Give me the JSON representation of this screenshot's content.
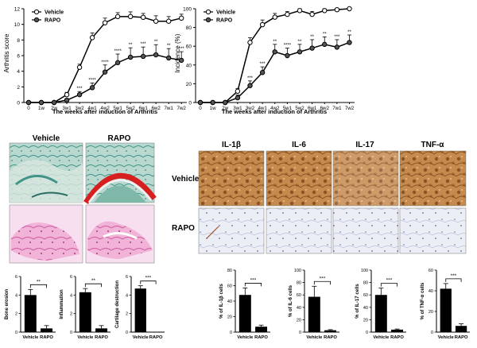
{
  "colors": {
    "axis": "#000000",
    "vehicle_marker_fill": "#ffffff",
    "rapo_marker_fill": "#555555",
    "bar_fill": "#000000",
    "ihc_stain_brown": "#b4763a",
    "ihc_background_rapo": "#e8eaf4",
    "he_stain_pink": "#e58dc0",
    "safranin_red": "#d62020",
    "fast_green": "#4aa59a"
  },
  "chart_data": [
    {
      "id": "arthritis-score",
      "type": "line",
      "ylabel": "Arthritis score",
      "xlabel": "The weeks after induction of Arthritis",
      "categories": [
        "0",
        "1w",
        "2w",
        "3w1",
        "3w2",
        "4w1",
        "4w2",
        "5w1",
        "5w2",
        "6w1",
        "6w2",
        "7w1",
        "7w2"
      ],
      "ylim": [
        0,
        12
      ],
      "yticks": [
        0,
        2,
        4,
        6,
        8,
        10,
        12
      ],
      "legend": {
        "position": "top-left",
        "entries": [
          "Vehicle",
          "RAPO"
        ]
      },
      "series": [
        {
          "name": "Vehicle",
          "values": [
            0,
            0,
            0,
            1.0,
            4.5,
            8.3,
            10.2,
            11.0,
            11.0,
            10.9,
            10.4,
            10.4,
            10.8
          ],
          "errors": [
            0,
            0,
            0,
            0.3,
            0.4,
            0.6,
            0.6,
            0.5,
            0.6,
            0.5,
            0.7,
            0.6,
            0.5
          ]
        },
        {
          "name": "RAPO",
          "values": [
            0,
            0,
            0,
            0.3,
            1.0,
            1.9,
            3.9,
            5.1,
            5.8,
            5.9,
            6.1,
            5.7,
            5.4
          ],
          "errors": [
            0,
            0,
            0,
            0.2,
            0.4,
            0.6,
            0.9,
            1.1,
            1.2,
            1.2,
            1.3,
            1.2,
            1.1
          ]
        }
      ],
      "significance": [
        {
          "category": "3w2",
          "label": "***"
        },
        {
          "category": "4w1",
          "label": "****"
        },
        {
          "category": "4w2",
          "label": "****"
        },
        {
          "category": "5w1",
          "label": "****"
        },
        {
          "category": "5w2",
          "label": "**"
        },
        {
          "category": "6w1",
          "label": "***"
        },
        {
          "category": "6w2",
          "label": "**"
        },
        {
          "category": "7w1",
          "label": "**"
        },
        {
          "category": "7w2",
          "label": "***"
        }
      ]
    },
    {
      "id": "incidence",
      "type": "line",
      "ylabel": "Incidence (%)",
      "xlabel": "The weeks after induction of Arthritis",
      "categories": [
        "0",
        "1w",
        "2w",
        "3w1",
        "3w2",
        "4w1",
        "4w2",
        "5w1",
        "5w2",
        "6w1",
        "6w2",
        "7w1",
        "7w2"
      ],
      "ylim": [
        0,
        100
      ],
      "yticks": [
        0,
        20,
        40,
        60,
        80,
        100
      ],
      "legend": {
        "position": "top-left",
        "entries": [
          "Vehicle",
          "RAPO"
        ]
      },
      "series": [
        {
          "name": "Vehicle",
          "values": [
            0,
            0,
            0,
            12,
            64,
            83,
            91,
            94,
            98,
            94,
            98,
            99,
            100
          ],
          "errors": [
            0,
            0,
            0,
            3,
            5,
            5,
            4,
            3,
            2,
            3,
            2,
            1,
            1
          ]
        },
        {
          "name": "RAPO",
          "values": [
            0,
            0,
            0,
            5,
            18,
            32,
            54,
            50,
            54,
            58,
            62,
            59,
            64
          ],
          "errors": [
            0,
            0,
            0,
            3,
            5,
            6,
            8,
            8,
            8,
            9,
            8,
            8,
            8
          ]
        }
      ],
      "significance": [
        {
          "category": "3w2",
          "label": "***"
        },
        {
          "category": "4w1",
          "label": "***"
        },
        {
          "category": "4w2",
          "label": "**"
        },
        {
          "category": "5w1",
          "label": "****"
        },
        {
          "category": "5w2",
          "label": "**"
        },
        {
          "category": "6w1",
          "label": "**"
        },
        {
          "category": "6w2",
          "label": "**"
        },
        {
          "category": "7w1",
          "label": "***"
        },
        {
          "category": "7w2",
          "label": "**"
        }
      ]
    },
    {
      "id": "bone-erosion",
      "type": "bar",
      "ylabel": "Bone erosion",
      "categories": [
        "Vehicle",
        "RAPO"
      ],
      "values": [
        4.0,
        0.4
      ],
      "errors": [
        0.6,
        0.3
      ],
      "ylim": [
        0,
        6
      ],
      "yticks": [
        0,
        2,
        4,
        6
      ],
      "significance": "**"
    },
    {
      "id": "inflammation",
      "type": "bar",
      "ylabel": "Inflammation",
      "categories": [
        "Vehicle",
        "RAPO"
      ],
      "values": [
        4.3,
        0.4
      ],
      "errors": [
        0.4,
        0.3
      ],
      "ylim": [
        0,
        6
      ],
      "yticks": [
        0,
        2,
        4,
        6
      ],
      "significance": "**"
    },
    {
      "id": "cartilage-destruction",
      "type": "bar",
      "ylabel": "Cartilage destruction",
      "categories": [
        "Vehicle",
        "RAPO"
      ],
      "values": [
        4.7,
        0
      ],
      "errors": [
        0.3,
        0
      ],
      "ylim": [
        0,
        6
      ],
      "yticks": [
        0,
        2,
        4,
        6
      ],
      "significance": "***"
    },
    {
      "id": "il1b-cells",
      "type": "bar",
      "ylabel": "% of IL-1β cells",
      "categories": [
        "Vehicle",
        "RAPO"
      ],
      "values": [
        48,
        7
      ],
      "errors": [
        9,
        2
      ],
      "ylim": [
        0,
        80
      ],
      "yticks": [
        0,
        20,
        40,
        60,
        80
      ],
      "significance": "***"
    },
    {
      "id": "il6-cells",
      "type": "bar",
      "ylabel": "% of IL-6 cells",
      "categories": [
        "Vehicle",
        "RAPO"
      ],
      "values": [
        57,
        3
      ],
      "errors": [
        17,
        1
      ],
      "ylim": [
        0,
        100
      ],
      "yticks": [
        0,
        20,
        40,
        60,
        80,
        100
      ],
      "significance": "***"
    },
    {
      "id": "il17-cells",
      "type": "bar",
      "ylabel": "% of IL-17 cells",
      "categories": [
        "Vehicle",
        "RAPO"
      ],
      "values": [
        60,
        4
      ],
      "errors": [
        11,
        1
      ],
      "ylim": [
        0,
        100
      ],
      "yticks": [
        0,
        20,
        40,
        60,
        80,
        100
      ],
      "significance": "***"
    },
    {
      "id": "tnfa-cells",
      "type": "bar",
      "ylabel": "% of TNF-α cells",
      "categories": [
        "Vehicle",
        "RAPO"
      ],
      "values": [
        42,
        6
      ],
      "errors": [
        5,
        2
      ],
      "ylim": [
        0,
        60
      ],
      "yticks": [
        0,
        20,
        40,
        60
      ],
      "significance": "***"
    }
  ],
  "histology": {
    "columns": [
      "Vehicle",
      "RAPO"
    ]
  },
  "ihc": {
    "columns": [
      "IL-1β",
      "IL-6",
      "IL-17",
      "TNF-α"
    ],
    "rows": [
      "Vehicle",
      "RAPO"
    ]
  }
}
